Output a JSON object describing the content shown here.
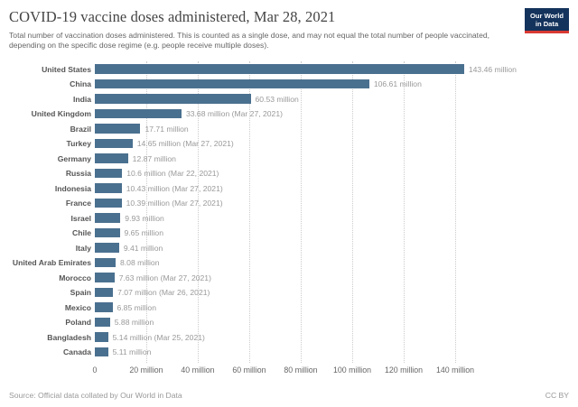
{
  "header": {
    "title": "COVID-19 vaccine doses administered, Mar 28, 2021",
    "subtitle": "Total number of vaccination doses administered. This is counted as a single dose, and may not equal the total number of people vaccinated, depending on the specific dose regime (e.g. people receive multiple doses).",
    "logo": {
      "line1": "Our World",
      "line2": "in Data",
      "bg_color": "#14335c",
      "accent_color": "#d93a34"
    }
  },
  "chart_data": {
    "type": "bar",
    "orientation": "horizontal",
    "title": "COVID-19 vaccine doses administered, Mar 28, 2021",
    "unit": "million doses",
    "categories": [
      "United States",
      "China",
      "India",
      "United Kingdom",
      "Brazil",
      "Turkey",
      "Germany",
      "Russia",
      "Indonesia",
      "France",
      "Israel",
      "Chile",
      "Italy",
      "United Arab Emirates",
      "Morocco",
      "Spain",
      "Mexico",
      "Poland",
      "Bangladesh",
      "Canada"
    ],
    "values": [
      143.46,
      106.61,
      60.53,
      33.68,
      17.71,
      14.65,
      12.87,
      10.6,
      10.43,
      10.39,
      9.93,
      9.65,
      9.41,
      8.08,
      7.63,
      7.07,
      6.85,
      5.88,
      5.14,
      5.11
    ],
    "value_labels": [
      "143.46 million",
      "106.61 million",
      "60.53 million",
      "33.68 million (Mar 27, 2021)",
      "17.71 million",
      "14.65 million (Mar 27, 2021)",
      "12.87 million",
      "10.6 million (Mar 22, 2021)",
      "10.43 million (Mar 27, 2021)",
      "10.39 million (Mar 27, 2021)",
      "9.93 million",
      "9.65 million",
      "9.41 million",
      "8.08 million",
      "7.63 million (Mar 27, 2021)",
      "7.07 million (Mar 26, 2021)",
      "6.85 million",
      "5.88 million",
      "5.14 million (Mar 25, 2021)",
      "5.11 million"
    ],
    "xlim": [
      0,
      150
    ],
    "x_ticks": [
      0,
      20,
      40,
      60,
      80,
      100,
      120,
      140
    ],
    "x_tick_labels": [
      "0",
      "20 million",
      "40 million",
      "60 million",
      "80 million",
      "100 million",
      "120 million",
      "140 million"
    ],
    "bar_color": "#4a708f",
    "grid": true,
    "legend": "none"
  },
  "footer": {
    "source": "Source: Official data collated by Our World in Data",
    "license": "CC BY"
  }
}
